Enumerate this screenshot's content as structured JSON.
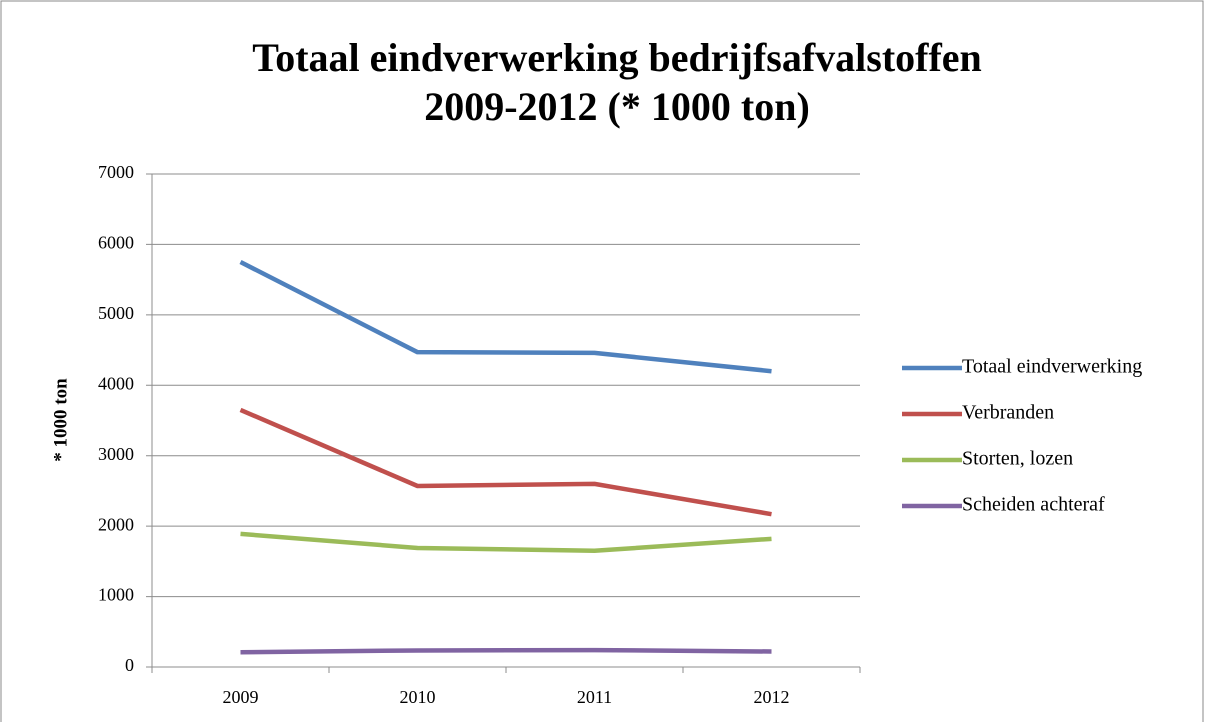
{
  "chart_data": {
    "type": "line",
    "title": [
      "Totaal eindverwerking bedrijfsafvalstoffen",
      "2009-2012 (* 1000 ton)"
    ],
    "ylabel": "* 1000 ton",
    "categories": [
      "2009",
      "2010",
      "2011",
      "2012"
    ],
    "series": [
      {
        "name": "Totaal eindverwerking",
        "color": "#4f81bd",
        "values": [
          5750,
          4470,
          4460,
          4200
        ]
      },
      {
        "name": "Verbranden",
        "color": "#c0504d",
        "values": [
          3650,
          2570,
          2600,
          2170
        ]
      },
      {
        "name": "Storten, lozen",
        "color": "#9bbb59",
        "values": [
          1890,
          1690,
          1650,
          1820
        ]
      },
      {
        "name": "Scheiden achteraf",
        "color": "#8064a2",
        "values": [
          210,
          235,
          240,
          220
        ]
      }
    ],
    "ylim": [
      0,
      7000
    ],
    "yticks": [
      0,
      1000,
      2000,
      3000,
      4000,
      5000,
      6000,
      7000
    ],
    "grid": true,
    "legend": "right"
  }
}
